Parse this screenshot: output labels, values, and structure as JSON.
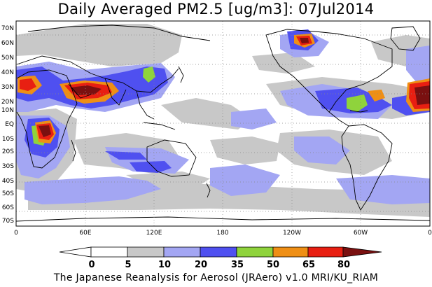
{
  "title": "Daily Averaged PM2.5 [ug/m3]: 07Jul2014",
  "footer": "The Japanese Reanalysis for Aerosol (JRAero) v1.0 MRI/KU_RIAM",
  "lat_labels": [
    "70N",
    "60N",
    "50N",
    "40N",
    "30N",
    "20N",
    "10N",
    "EQ",
    "10S",
    "20S",
    "30S",
    "40S",
    "50S",
    "60S",
    "70S"
  ],
  "lon_labels": [
    "0",
    "60E",
    "120E",
    "180",
    "120W",
    "60W",
    "0"
  ],
  "colorbar": {
    "levels": [
      "0",
      "5",
      "10",
      "20",
      "35",
      "50",
      "65",
      "80"
    ],
    "colors": [
      "#ffffff",
      "#c8c8c8",
      "#a3a6f3",
      "#4f50f0",
      "#8fd33c",
      "#ef8f15",
      "#e81f12",
      "#7a1010"
    ]
  },
  "palette": {
    "gray": "#c8c8c8",
    "lightblue": "#a3a6f3",
    "blue": "#4f50f0",
    "green": "#8fd33c",
    "orange": "#ef8f15",
    "red": "#e81f12",
    "darkred": "#7a1010"
  }
}
